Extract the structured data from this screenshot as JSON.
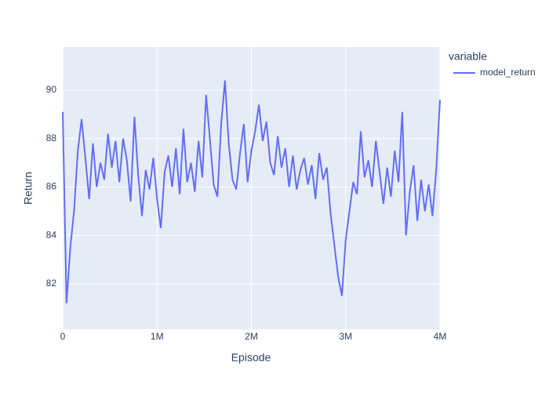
{
  "chart_data": {
    "type": "line",
    "xlabel": "Episode",
    "ylabel": "Return",
    "legend_title": "variable",
    "legend_position": "right",
    "grid": true,
    "x": [
      0,
      40000,
      80000,
      120000,
      160000,
      200000,
      240000,
      280000,
      320000,
      360000,
      400000,
      440000,
      480000,
      520000,
      560000,
      600000,
      640000,
      680000,
      720000,
      760000,
      800000,
      840000,
      880000,
      920000,
      960000,
      1000000,
      1040000,
      1080000,
      1120000,
      1160000,
      1200000,
      1240000,
      1280000,
      1320000,
      1360000,
      1400000,
      1440000,
      1480000,
      1520000,
      1560000,
      1600000,
      1640000,
      1680000,
      1720000,
      1760000,
      1800000,
      1840000,
      1880000,
      1920000,
      1960000,
      2000000,
      2040000,
      2080000,
      2120000,
      2160000,
      2200000,
      2240000,
      2280000,
      2320000,
      2360000,
      2400000,
      2440000,
      2480000,
      2520000,
      2560000,
      2600000,
      2640000,
      2680000,
      2720000,
      2760000,
      2800000,
      2840000,
      2880000,
      2920000,
      2960000,
      3000000,
      3040000,
      3080000,
      3120000,
      3160000,
      3200000,
      3240000,
      3280000,
      3320000,
      3360000,
      3400000,
      3440000,
      3480000,
      3520000,
      3560000,
      3600000,
      3640000,
      3680000,
      3720000,
      3760000,
      3800000,
      3840000,
      3880000,
      3920000,
      3960000,
      4000000
    ],
    "series": [
      {
        "name": "model_return",
        "color": "#636efa",
        "values": [
          89.1,
          81.2,
          83.5,
          85.0,
          87.5,
          88.8,
          87.2,
          85.5,
          87.8,
          86.0,
          87.0,
          86.3,
          88.2,
          86.8,
          87.9,
          86.2,
          88.0,
          87.1,
          85.4,
          88.9,
          86.5,
          84.8,
          86.7,
          85.9,
          87.2,
          85.5,
          84.3,
          86.6,
          87.3,
          86.0,
          87.6,
          85.7,
          88.4,
          86.2,
          87.0,
          85.8,
          87.9,
          86.4,
          89.8,
          88.0,
          86.1,
          85.6,
          88.6,
          90.4,
          87.8,
          86.3,
          85.9,
          87.4,
          88.6,
          86.2,
          87.5,
          88.3,
          89.4,
          87.9,
          88.7,
          87.0,
          86.5,
          88.1,
          86.8,
          87.6,
          86.0,
          87.3,
          85.9,
          86.7,
          87.2,
          86.1,
          86.9,
          85.5,
          87.4,
          86.3,
          86.8,
          84.9,
          83.6,
          82.3,
          81.5,
          83.8,
          85.0,
          86.2,
          85.7,
          88.3,
          86.4,
          87.1,
          86.0,
          87.9,
          86.6,
          85.3,
          86.8,
          85.6,
          87.5,
          86.2,
          89.1,
          84.0,
          85.8,
          86.9,
          84.6,
          86.3,
          85.0,
          86.1,
          84.8,
          86.7,
          89.6
        ]
      }
    ],
    "xlim": [
      0,
      4000000
    ],
    "xticks": [
      0,
      {
        "value": 1000000,
        "label": "1M"
      },
      {
        "value": 2000000,
        "label": "2M"
      },
      {
        "value": 3000000,
        "label": "3M"
      },
      {
        "value": 4000000,
        "label": "4M"
      }
    ],
    "ylim": [
      80.12,
      91.78
    ],
    "yticks": [
      82,
      84,
      86,
      88,
      90
    ]
  }
}
